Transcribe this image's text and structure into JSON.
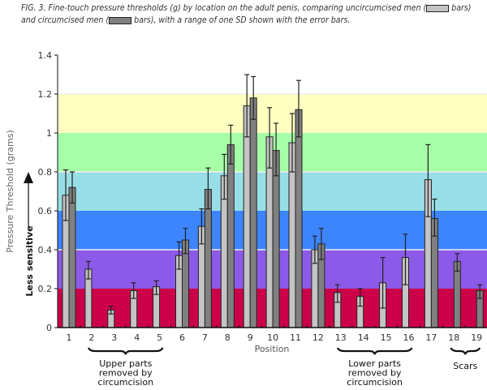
{
  "caption": {
    "part1": "FIG. 3. Fine-touch pressure thresholds (g) by location on the adult penis, comparing uncircumcised men (",
    "part2": " bars) and circumcised men (",
    "part3": " bars), with a range of one SD shown with the error bars."
  },
  "chart_data": {
    "type": "bar",
    "title": "",
    "xlabel": "Position",
    "ylabel": "Pressure Threshold (grams)",
    "ylim": [
      0,
      1.4
    ],
    "yticks": [
      "0",
      "0.2",
      "0.4",
      "0.6",
      "0.8",
      "1",
      "1.2",
      "1.4"
    ],
    "categories": [
      "1",
      "2",
      "3",
      "4",
      "5",
      "6",
      "7",
      "8",
      "9",
      "10",
      "11",
      "12",
      "13",
      "14",
      "15",
      "16",
      "17",
      "18",
      "19"
    ],
    "series": [
      {
        "name": "uncircumcised",
        "color": "#c4c4c4",
        "values": [
          0.68,
          0.3,
          0.09,
          0.19,
          0.21,
          0.37,
          0.52,
          0.78,
          1.14,
          0.98,
          0.95,
          0.4,
          0.18,
          0.16,
          0.23,
          0.36,
          0.76,
          null,
          null
        ],
        "sd_low": [
          0.55,
          0.25,
          0.07,
          0.15,
          0.17,
          0.3,
          0.43,
          0.66,
          0.98,
          0.82,
          0.8,
          0.33,
          0.13,
          0.11,
          0.1,
          0.22,
          0.57,
          null,
          null
        ],
        "sd_high": [
          0.81,
          0.34,
          0.11,
          0.23,
          0.24,
          0.44,
          0.61,
          0.89,
          1.3,
          1.13,
          1.1,
          0.47,
          0.22,
          0.2,
          0.36,
          0.48,
          0.94,
          null,
          null
        ]
      },
      {
        "name": "circumcised",
        "color": "#808080",
        "values": [
          0.72,
          null,
          null,
          null,
          null,
          0.45,
          0.71,
          0.94,
          1.18,
          0.91,
          1.12,
          0.43,
          null,
          null,
          null,
          null,
          0.56,
          0.34,
          0.19
        ],
        "sd_low": [
          0.64,
          null,
          null,
          null,
          null,
          0.38,
          0.61,
          0.84,
          1.07,
          0.78,
          0.98,
          0.35,
          null,
          null,
          null,
          null,
          0.47,
          0.29,
          0.15
        ],
        "sd_high": [
          0.8,
          null,
          null,
          null,
          null,
          0.51,
          0.82,
          1.04,
          1.29,
          1.05,
          1.27,
          0.51,
          null,
          null,
          null,
          null,
          0.66,
          0.38,
          0.22
        ]
      }
    ],
    "bands": [
      {
        "from": 0,
        "to": 0.2,
        "color": "#cc0048"
      },
      {
        "from": 0.2,
        "to": 0.4,
        "color": "#8c5ae8"
      },
      {
        "from": 0.4,
        "to": 0.6,
        "color": "#3d84ff"
      },
      {
        "from": 0.6,
        "to": 0.8,
        "color": "#98dee6"
      },
      {
        "from": 0.8,
        "to": 1.0,
        "color": "#a6ffa6"
      },
      {
        "from": 1.0,
        "to": 1.2,
        "color": "#ffffc0"
      }
    ],
    "annotations": {
      "arrow_label": "Less sensitive",
      "groups": [
        {
          "label": [
            "Upper parts",
            "removed by",
            "circumcision"
          ],
          "from": "2",
          "to": "5"
        },
        {
          "label": [
            "Lower parts",
            "removed by",
            "circumcision"
          ],
          "from": "13",
          "to": "16"
        },
        {
          "label": [
            "Scars"
          ],
          "from": "18",
          "to": "19"
        }
      ]
    }
  }
}
